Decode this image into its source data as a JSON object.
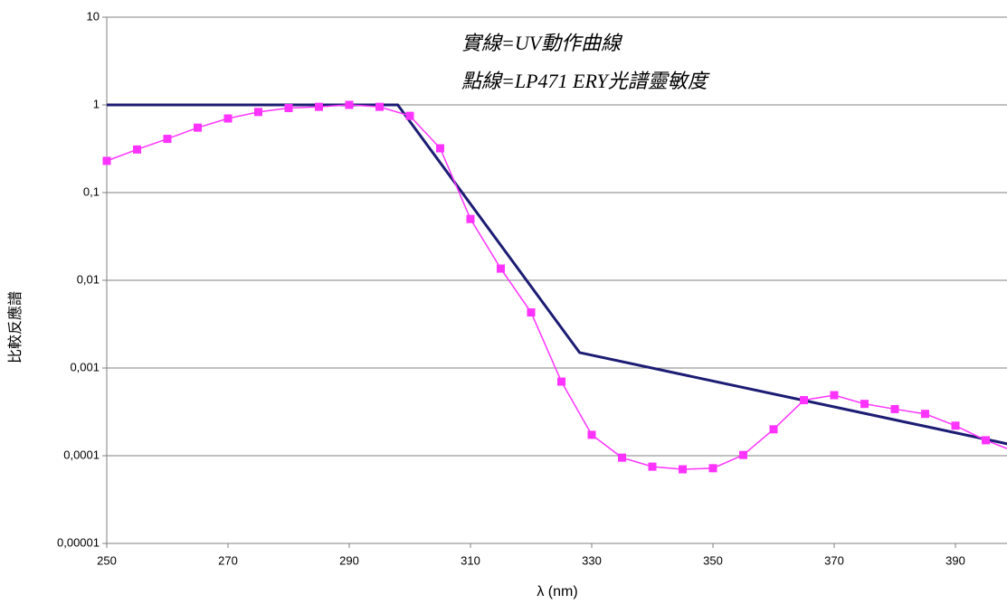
{
  "chart_data": {
    "type": "line",
    "annotations": [
      "實線=UV動作曲線",
      "點線=LP471 ERY光譜靈敏度"
    ],
    "xlabel": "λ (nm)",
    "ylabel": "比較反應譜",
    "log_y": true,
    "grid": true,
    "xlim": [
      250,
      400
    ],
    "xticks": [
      250,
      270,
      290,
      310,
      330,
      350,
      370,
      390
    ],
    "ylim": [
      1e-05,
      10
    ],
    "yticks": [
      {
        "value": 1e-05,
        "label": "0,00001"
      },
      {
        "value": 0.0001,
        "label": "0,0001"
      },
      {
        "value": 0.001,
        "label": "0,001"
      },
      {
        "value": 0.01,
        "label": "0,01"
      },
      {
        "value": 0.1,
        "label": "0,1"
      },
      1,
      10
    ],
    "series": [
      {
        "color": "#1c1c74",
        "markers": false,
        "x": [
          250,
          298,
          328,
          400
        ],
        "values": [
          1,
          1,
          0.0015,
          0.00013
        ]
      },
      {
        "color": "#ff33ff",
        "markers": true,
        "x": [
          250,
          255,
          260,
          265,
          270,
          275,
          280,
          285,
          290,
          295,
          300,
          305,
          310,
          315,
          320,
          325,
          330,
          335,
          340,
          345,
          350,
          355,
          360,
          365,
          370,
          375,
          380,
          385,
          390,
          395,
          400
        ],
        "values": [
          0.23,
          0.31,
          0.41,
          0.55,
          0.7,
          0.83,
          0.92,
          0.95,
          1.0,
          0.95,
          0.75,
          0.32,
          0.05,
          0.0136,
          0.0043,
          0.0007,
          0.000173,
          9.5e-05,
          7.5e-05,
          7e-05,
          7.2e-05,
          0.000102,
          0.0002,
          0.00043,
          0.00049,
          0.00039,
          0.00034,
          0.0003,
          0.00022,
          0.00015,
          0.00011
        ]
      }
    ]
  }
}
